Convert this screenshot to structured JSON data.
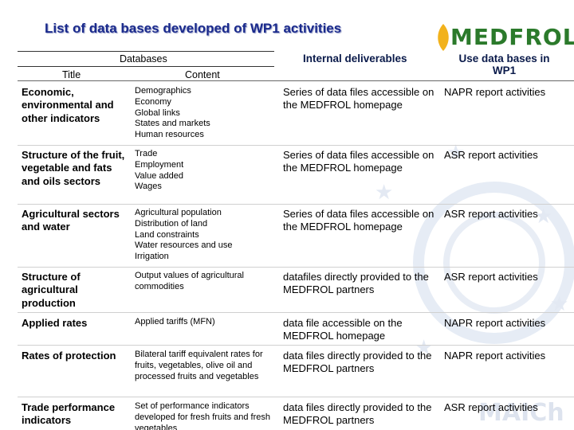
{
  "page": {
    "title": "List of data bases developed of WP1 activities",
    "logo_text": "MEDFROL",
    "watermark_text": "MAICh"
  },
  "headers": {
    "databases": "Databases",
    "title": "Title",
    "content": "Content",
    "internal_deliverables": "Internal deliverables",
    "use_data_bases": "Use data bases in WP1"
  },
  "rows": [
    {
      "title": "Economic, environmental and other indicators",
      "content": [
        "Demographics",
        "Economy",
        "Global links",
        "States and markets",
        "Human resources"
      ],
      "deliverable": "Series of data files accessible on the MEDFROL homepage",
      "use": "NAPR report activities"
    },
    {
      "title": "Structure of the fruit, vegetable and fats and oils sectors",
      "content": [
        "Trade",
        "Employment",
        "Value added",
        "Wages"
      ],
      "deliverable": "Series of data files accessible on the MEDFROL homepage",
      "use": "ASR report activities"
    },
    {
      "title": "Agricultural sectors and water",
      "content": [
        "Agricultural population",
        "Distribution of land",
        "Land constraints",
        "Water resources and use",
        "Irrigation"
      ],
      "deliverable": "Series of data files accessible on the MEDFROL homepage",
      "use": "ASR report activities"
    },
    {
      "title": "Structure of agricultural production",
      "content": [
        "Output values of agricultural commodities"
      ],
      "deliverable": "datafiles directly provided to the MEDFROL partners",
      "use": "ASR report activities"
    },
    {
      "title": "Applied rates",
      "content": [
        "Applied tariffs (MFN)"
      ],
      "deliverable": "data file accessible on the MEDFROL homepage",
      "use": "NAPR report activities"
    },
    {
      "title": "Rates of protection",
      "content": [
        "Bilateral tariff equivalent rates for fruits, vegetables, olive oil and processed fruits and vegetables"
      ],
      "deliverable": "data files directly provided to the MEDFROL partners",
      "use": "NAPR report activities"
    },
    {
      "title": "Trade performance indicators",
      "content": [
        "Set of performance indicators developed for fresh fruits and fresh vegetables"
      ],
      "deliverable": "data files directly provided to the MEDFROL partners",
      "use": "ASR report activities"
    }
  ]
}
